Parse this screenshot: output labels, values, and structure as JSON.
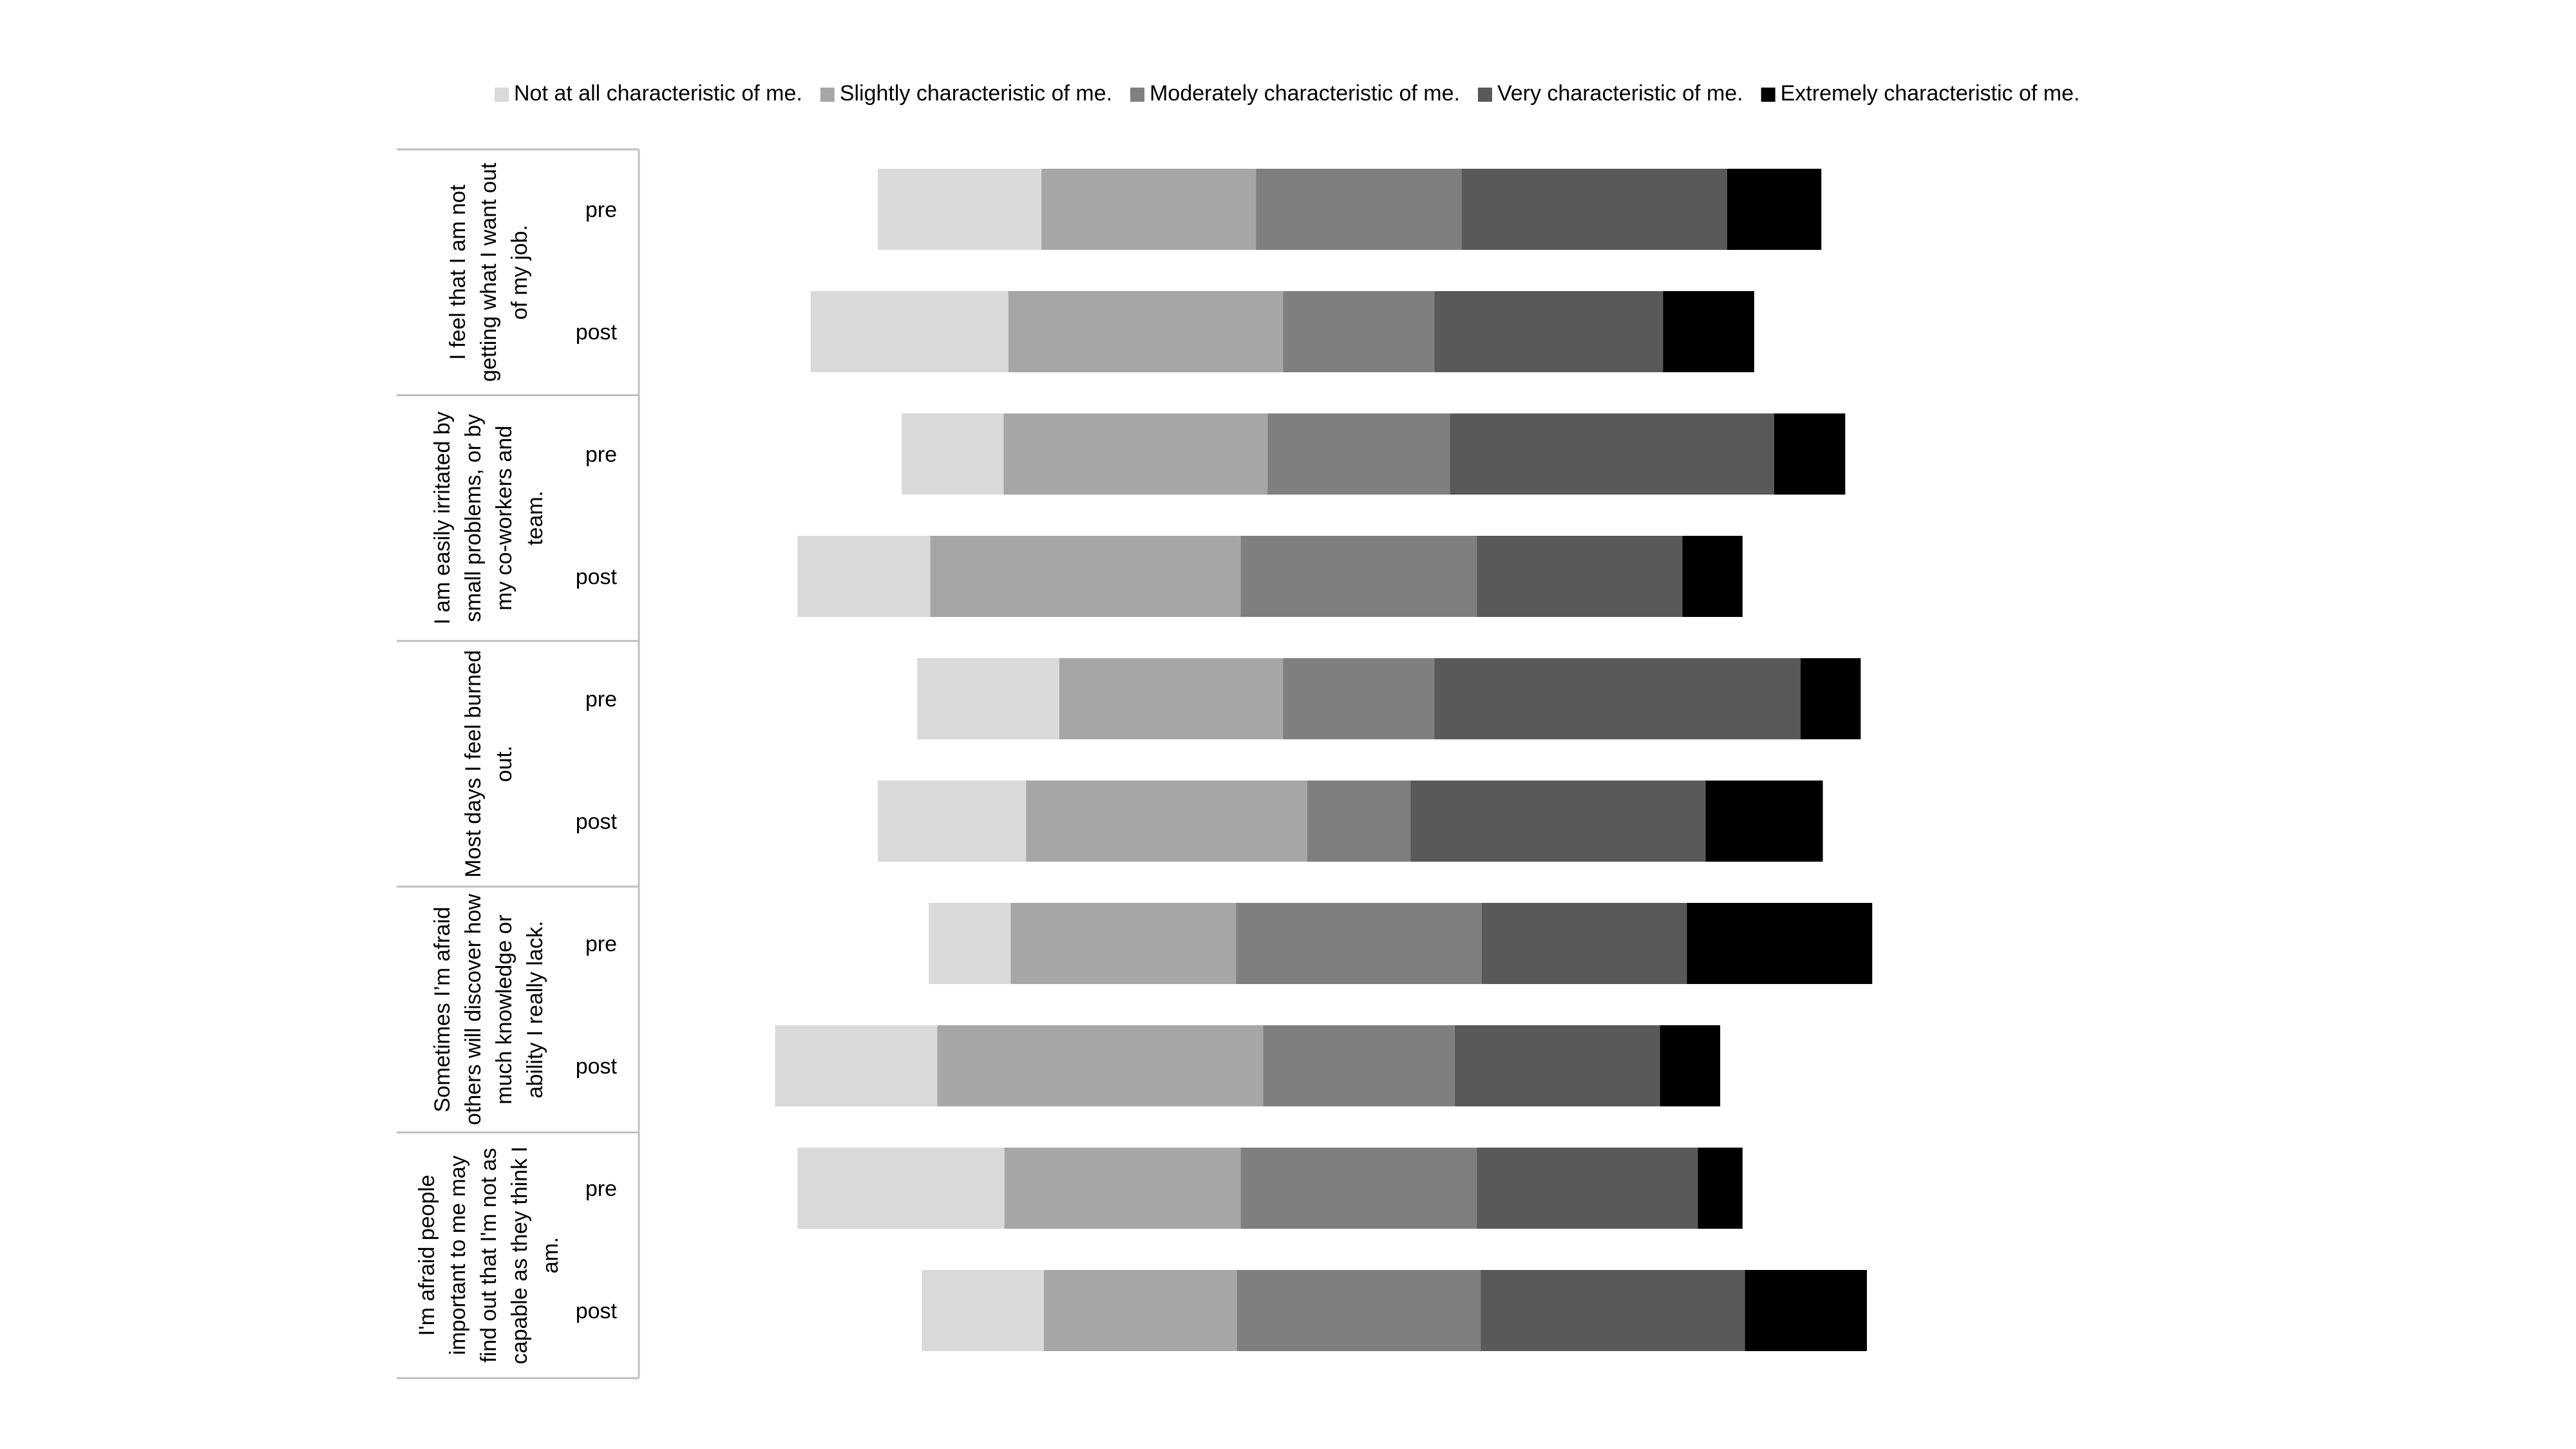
{
  "chart_data": {
    "type": "bar",
    "orientation": "horizontal",
    "stacked": "diverging",
    "center_category": "Moderately characteristic of me.",
    "legend_position": "top",
    "grid": false,
    "xlim": [
      -48,
      45
    ],
    "legend": [
      {
        "name": "Not at all characteristic of me.",
        "color": "#d9d9d9"
      },
      {
        "name": "Slightly characteristic of me.",
        "color": "#a6a6a6"
      },
      {
        "name": "Moderately characteristic of me.",
        "color": "#7f7f7f"
      },
      {
        "name": "Very characteristic of me.",
        "color": "#595959"
      },
      {
        "name": "Extremely characteristic of me.",
        "color": "#000000"
      }
    ],
    "groups": [
      {
        "label_lines": [
          "I feel that I am not",
          "getting what I want out",
          "of my job."
        ],
        "rows": [
          {
            "label": "pre",
            "values": [
              10.6,
              13.9,
              13.3,
              17.2,
              6.1
            ]
          },
          {
            "label": "post",
            "values": [
              12.8,
              17.8,
              9.8,
              14.8,
              5.9
            ]
          }
        ]
      },
      {
        "label_lines": [
          "I am easily irritated by",
          "small problems, or by",
          "my co-workers and",
          "team."
        ],
        "rows": [
          {
            "label": "pre",
            "values": [
              6.6,
              17.1,
              11.8,
              21.0,
              4.6
            ]
          },
          {
            "label": "post",
            "values": [
              8.6,
              20.1,
              15.3,
              13.3,
              3.9
            ]
          }
        ]
      },
      {
        "label_lines": [
          "Most days I feel burned",
          "out."
        ],
        "rows": [
          {
            "label": "pre",
            "values": [
              9.2,
              14.5,
              9.8,
              23.7,
              3.9
            ]
          },
          {
            "label": "post",
            "values": [
              9.6,
              18.2,
              6.7,
              19.1,
              7.6
            ]
          }
        ]
      },
      {
        "label_lines": [
          "Sometimes I’m afraid",
          "others will discover how",
          "much knowledge or",
          "ability I really lack."
        ],
        "rows": [
          {
            "label": "pre",
            "values": [
              5.3,
              14.6,
              15.9,
              13.3,
              12.0
            ]
          },
          {
            "label": "post",
            "values": [
              10.5,
              21.1,
              12.4,
              13.3,
              3.9
            ]
          }
        ]
      },
      {
        "label_lines": [
          "I'm afraid people",
          "important to me may",
          "find out that I'm not as",
          "capable as they think I",
          "am."
        ],
        "rows": [
          {
            "label": "pre",
            "values": [
              13.4,
              15.3,
              15.3,
              14.3,
              2.9
            ]
          },
          {
            "label": "post",
            "values": [
              7.9,
              12.5,
              15.8,
              17.1,
              7.9
            ]
          }
        ]
      }
    ]
  }
}
